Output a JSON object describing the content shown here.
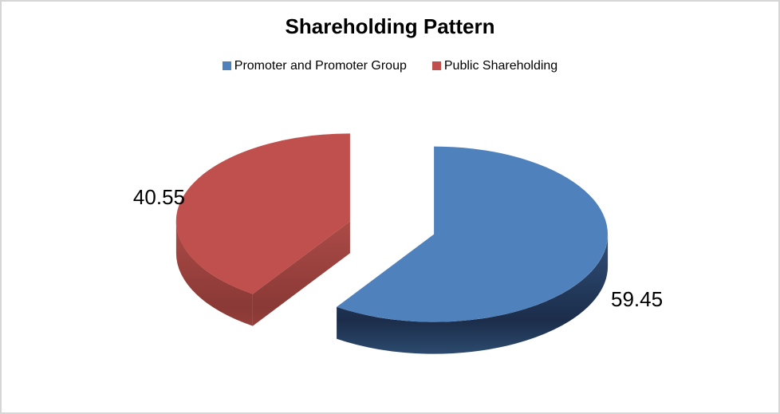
{
  "chart_data": {
    "type": "pie",
    "style": "3d-exploded",
    "title": "Shareholding Pattern",
    "legend_position": "top",
    "background": "#ffffff",
    "frame_border": "#d6d6d6",
    "text_color": "#000000",
    "slices": [
      {
        "label": "Promoter and Promoter Group",
        "value": 59.45,
        "display": "59.45",
        "color": "#4F81BD",
        "wall_top": "#31507A",
        "wall_bottom": "#1B2D4A",
        "wall_rim": "#2C4A6E"
      },
      {
        "label": "Public Shareholding",
        "value": 40.55,
        "display": "40.55",
        "color": "#C0504D",
        "wall_top": "#AC4B47",
        "wall_bottom": "#8A3936",
        "wall_rim": "#9C4340"
      }
    ]
  }
}
